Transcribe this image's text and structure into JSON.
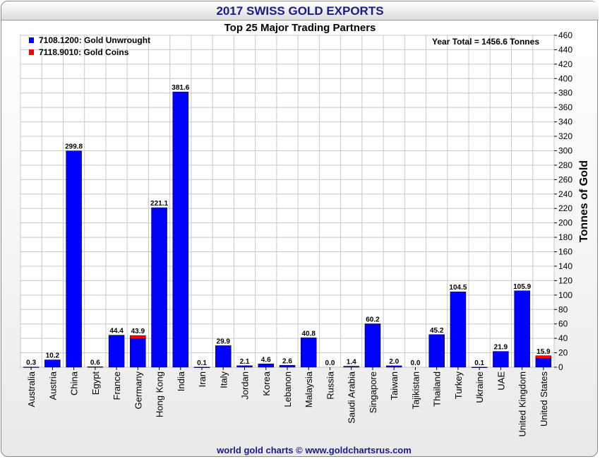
{
  "title": "2017 SWISS GOLD EXPORTS",
  "subtitle": "Top 25 Major Trading Partners",
  "footer": "world gold charts © www.goldchartsrus.com",
  "colors": {
    "unwrought": "#0000ff",
    "coins": "#ff0000",
    "title": "#1a1a8c"
  },
  "chart_data": {
    "type": "bar",
    "stacked": true,
    "title": "2017 SWISS GOLD EXPORTS",
    "subtitle": "Top 25 Major Trading Partners",
    "ylabel": "Tonnes of Gold",
    "ylim": [
      0,
      460
    ],
    "ytick_step": 20,
    "y_axis_side": "right",
    "grid": true,
    "legend_position": "top-left",
    "annotation": "Year Total = 1456.6 Tonnes",
    "categories": [
      "Australia",
      "Austria",
      "China",
      "Egypt",
      "France",
      "Germany",
      "Hong Kong",
      "India",
      "Iran",
      "Italy",
      "Jordan",
      "Korea",
      "Lebanon",
      "Malaysia",
      "Russia",
      "Saudi Arabia",
      "Singapore",
      "Taiwan",
      "Tajikistan",
      "Thailand",
      "Turkey",
      "Ukraine",
      "UAE",
      "United Kingdom",
      "United States"
    ],
    "totals": [
      "0.3",
      "10.2",
      "299.8",
      "0.6",
      "44.4",
      "43.9",
      "221.1",
      "381.6",
      "0.1",
      "29.9",
      "2.1",
      "4.6",
      "2.6",
      "40.8",
      "0.0",
      "1.4",
      "60.2",
      "2.0",
      "0.0",
      "45.2",
      "104.5",
      "0.1",
      "21.9",
      "105.9",
      "15.9"
    ],
    "series": [
      {
        "name": "7108.1200: Gold Unwrought",
        "color": "#0000ff",
        "values": [
          0.3,
          10.2,
          299.8,
          0.6,
          44.4,
          39.5,
          221.1,
          381.6,
          0.1,
          29.9,
          2.1,
          4.6,
          2.6,
          40.8,
          0.0,
          1.4,
          60.2,
          2.0,
          0.0,
          45.2,
          104.5,
          0.1,
          21.9,
          105.9,
          12.4
        ]
      },
      {
        "name": "7118.9010: Gold Coins",
        "color": "#ff0000",
        "values": [
          0,
          0,
          0,
          0,
          0,
          4.4,
          0,
          0,
          0,
          0,
          0,
          0,
          0,
          0,
          0,
          0,
          0,
          0,
          0,
          0,
          0,
          0,
          0,
          0,
          3.5
        ]
      }
    ]
  }
}
